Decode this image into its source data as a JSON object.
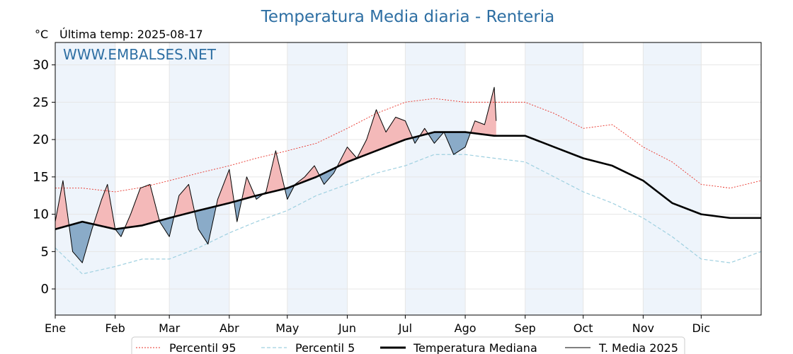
{
  "chart_data": {
    "type": "line",
    "title": "Temperatura Media diaria - Renteria",
    "unit_label": "°C",
    "subtitle": "Última temp: 2025-08-17",
    "watermark": "WWW.EMBALSES.NET",
    "ylim": [
      -3.5,
      33
    ],
    "yticks": [
      0,
      5,
      10,
      15,
      20,
      25,
      30
    ],
    "xlim": [
      1,
      366
    ],
    "xticks": [
      {
        "label": "Ene",
        "day": 1
      },
      {
        "label": "Feb",
        "day": 32
      },
      {
        "label": "Mar",
        "day": 60
      },
      {
        "label": "Abr",
        "day": 91
      },
      {
        "label": "May",
        "day": 121
      },
      {
        "label": "Jun",
        "day": 152
      },
      {
        "label": "Jul",
        "day": 182
      },
      {
        "label": "Ago",
        "day": 213
      },
      {
        "label": "Sep",
        "day": 244
      },
      {
        "label": "Oct",
        "day": 274
      },
      {
        "label": "Nov",
        "day": 305
      },
      {
        "label": "Dic",
        "day": 335
      }
    ],
    "grid": true,
    "legend_position": "bottom",
    "colors": {
      "p95": "#e8332a",
      "p5": "#9fd0e0",
      "median": "#000000",
      "current": "#000000",
      "above_fill": "#f4b9b9",
      "below_fill": "#8aabc8",
      "band": "#eef4fb",
      "title": "#2e6fa3"
    },
    "series": [
      {
        "name": "Percentil 95",
        "key": "p95",
        "x": [
          1,
          15,
          32,
          46,
          60,
          75,
          91,
          105,
          121,
          136,
          152,
          167,
          182,
          197,
          213,
          228,
          244,
          259,
          274,
          289,
          305,
          320,
          335,
          350,
          366
        ],
        "values": [
          13.5,
          13.5,
          13.0,
          13.6,
          14.5,
          15.5,
          16.5,
          17.5,
          18.5,
          19.5,
          21.5,
          23.5,
          25.0,
          25.5,
          25.0,
          25.0,
          25.0,
          23.5,
          21.5,
          22.0,
          19.0,
          17.0,
          14.0,
          13.5,
          14.5
        ]
      },
      {
        "name": "Percentil 5",
        "key": "p5",
        "x": [
          1,
          15,
          32,
          46,
          60,
          75,
          91,
          105,
          121,
          136,
          152,
          167,
          182,
          197,
          213,
          228,
          244,
          259,
          274,
          289,
          305,
          320,
          335,
          350,
          366
        ],
        "values": [
          5.5,
          2.0,
          3.0,
          4.0,
          4.0,
          5.5,
          7.5,
          9.0,
          10.5,
          12.5,
          14.0,
          15.5,
          16.5,
          18.0,
          18.0,
          17.5,
          17.0,
          15.0,
          13.0,
          11.5,
          9.5,
          7.0,
          4.0,
          3.5,
          5.0
        ]
      },
      {
        "name": "Temperatura Mediana",
        "key": "median",
        "x": [
          1,
          15,
          32,
          46,
          60,
          75,
          91,
          105,
          121,
          136,
          152,
          167,
          182,
          197,
          213,
          228,
          244,
          259,
          274,
          289,
          305,
          320,
          335,
          350,
          366
        ],
        "values": [
          8.0,
          9.0,
          8.0,
          8.5,
          9.5,
          10.5,
          11.5,
          12.5,
          13.5,
          15.0,
          17.0,
          18.5,
          20.0,
          21.0,
          21.0,
          20.5,
          20.5,
          19.0,
          17.5,
          16.5,
          14.5,
          11.5,
          10.0,
          9.5,
          9.5
        ]
      },
      {
        "name": "T. Media 2025",
        "key": "current",
        "x": [
          1,
          5,
          10,
          15,
          20,
          25,
          28,
          32,
          35,
          40,
          45,
          50,
          55,
          60,
          65,
          70,
          75,
          80,
          85,
          91,
          95,
          100,
          105,
          110,
          115,
          121,
          125,
          130,
          135,
          140,
          145,
          152,
          157,
          162,
          167,
          172,
          177,
          182,
          187,
          192,
          197,
          202,
          207,
          213,
          218,
          223,
          228,
          229
        ],
        "values": [
          9.0,
          14.5,
          5.0,
          3.5,
          8.0,
          12.0,
          14.0,
          8.0,
          7.0,
          10.0,
          13.5,
          14.0,
          9.0,
          7.0,
          12.5,
          14.0,
          8.0,
          6.0,
          12.0,
          16.0,
          9.0,
          15.0,
          12.0,
          13.0,
          18.5,
          12.0,
          14.0,
          15.0,
          16.5,
          14.0,
          15.5,
          19.0,
          17.5,
          20.0,
          24.0,
          21.0,
          23.0,
          22.5,
          19.5,
          21.5,
          19.5,
          21.0,
          18.0,
          19.0,
          22.5,
          22.0,
          27.0,
          22.5
        ]
      }
    ]
  }
}
